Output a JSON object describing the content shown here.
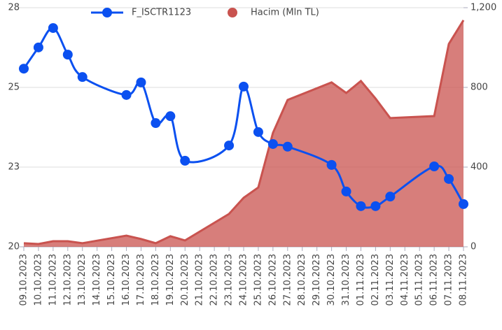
{
  "chart_data": {
    "type": "line",
    "x": [
      "09.10.2023",
      "10.10.2023",
      "11.10.2023",
      "12.10.2023",
      "13.10.2023",
      "16.10.2023",
      "17.10.2023",
      "18.10.2023",
      "19.10.2023",
      "20.10.2023",
      "23.10.2023",
      "24.10.2023",
      "25.10.2023",
      "26.10.2023",
      "27.10.2023",
      "30.10.2023",
      "31.10.2023",
      "01.11.2023",
      "02.11.2023",
      "03.11.2023",
      "06.11.2023",
      "07.11.2023",
      "08.11.2023"
    ],
    "xticks": [
      "09.10.2023",
      "10.10.2023",
      "11.10.2023",
      "12.10.2023",
      "13.10.2023",
      "14.10.2023",
      "15.10.2023",
      "16.10.2023",
      "17.10.2023",
      "18.10.2023",
      "19.10.2023",
      "20.10.2023",
      "21.10.2023",
      "22.10.2023",
      "23.10.2023",
      "24.10.2023",
      "25.10.2023",
      "26.10.2023",
      "27.10.2023",
      "28.10.2023",
      "29.10.2023",
      "30.10.2023",
      "31.10.2023",
      "01.11.2023",
      "02.11.2023",
      "03.11.2023",
      "04.11.2023",
      "05.11.2023",
      "06.11.2023",
      "07.11.2023",
      "08.11.2023"
    ],
    "ylim": [
      20,
      28
    ],
    "yticks": [
      20,
      {
        "value": 22.667,
        "label": "23"
      },
      {
        "value": 25.333,
        "label": "25"
      },
      28
    ],
    "y2lim": [
      0,
      1200
    ],
    "y2ticks": [
      0,
      400,
      800,
      {
        "value": 1200,
        "label": "1,200"
      }
    ],
    "grid": true,
    "legend": "top",
    "series": [
      {
        "name": "F_ISCTR1123",
        "color": "#0b50f0",
        "type": "line",
        "values": [
          25.96,
          26.67,
          27.32,
          26.43,
          25.68,
          25.08,
          25.5,
          24.14,
          24.37,
          22.88,
          23.39,
          25.36,
          23.84,
          23.44,
          23.35,
          22.74,
          21.85,
          21.36,
          21.36,
          21.68,
          22.69,
          22.27,
          21.43
        ]
      },
      {
        "name": "Hacim (Mln TL)",
        "color": "#c9534f",
        "type": "area",
        "axis": "y2",
        "values": [
          18,
          14,
          28,
          28,
          18,
          56,
          39,
          18,
          53,
          32,
          165,
          246,
          298,
          572,
          737,
          825,
          772,
          832,
          744,
          646,
          656,
          1018,
          1137
        ]
      }
    ]
  }
}
